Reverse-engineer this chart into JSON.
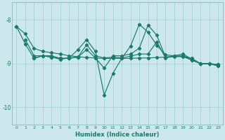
{
  "xlabel": "Humidex (Indice chaleur)",
  "background_color": "#cce8ec",
  "grid_color": "#aad4d8",
  "line_color": "#1a7a6e",
  "xlim": [
    -0.5,
    23.5
  ],
  "ylim": [
    -10.4,
    -7.6
  ],
  "yticks": [
    -10,
    -9,
    -8
  ],
  "xticks": [
    0,
    1,
    2,
    3,
    4,
    5,
    6,
    7,
    8,
    9,
    10,
    11,
    12,
    13,
    14,
    15,
    16,
    17,
    18,
    19,
    20,
    21,
    22,
    23
  ],
  "lines": [
    {
      "x": [
        0,
        1,
        2,
        3,
        4,
        5,
        6,
        7,
        8,
        9,
        10,
        11,
        12,
        13,
        14,
        15,
        16,
        17,
        18,
        19,
        20,
        21,
        22,
        23
      ],
      "y": [
        -8.15,
        -8.32,
        -8.65,
        -8.72,
        -8.75,
        -8.78,
        -8.82,
        -8.84,
        -8.86,
        -8.87,
        -8.88,
        -8.88,
        -8.88,
        -8.88,
        -8.87,
        -8.87,
        -8.86,
        -8.85,
        -8.84,
        -8.84,
        -8.92,
        -9.0,
        -9.0,
        -9.02
      ]
    },
    {
      "x": [
        0,
        1,
        2,
        3,
        4,
        5,
        6,
        7,
        8,
        9,
        10,
        11,
        12,
        13,
        14,
        15,
        16,
        17,
        18,
        19,
        20,
        21,
        22,
        23
      ],
      "y": [
        -8.15,
        -8.55,
        -8.88,
        -8.82,
        -8.85,
        -8.9,
        -8.87,
        -8.68,
        -8.45,
        -8.72,
        -9.72,
        -9.22,
        -8.88,
        -8.6,
        -8.1,
        -8.28,
        -8.58,
        -8.8,
        -8.82,
        -8.78,
        -8.9,
        -9.0,
        -9.0,
        -9.05
      ]
    },
    {
      "x": [
        1,
        2,
        3,
        4,
        5,
        6,
        7,
        8,
        9,
        10,
        11,
        12,
        13,
        14,
        15,
        16,
        17,
        18,
        19,
        20,
        21,
        22,
        23
      ],
      "y": [
        -8.45,
        -8.82,
        -8.82,
        -8.82,
        -8.88,
        -8.87,
        -8.85,
        -8.68,
        -8.87,
        -9.1,
        -8.82,
        -8.82,
        -8.78,
        -8.65,
        -8.12,
        -8.35,
        -8.85,
        -8.83,
        -8.82,
        -8.92,
        -9.0,
        -9.0,
        -9.02
      ]
    },
    {
      "x": [
        2,
        3,
        4,
        5,
        6,
        7,
        8,
        9,
        10,
        11,
        12,
        13,
        14,
        15,
        16,
        17,
        18,
        19,
        20,
        21,
        22,
        23
      ],
      "y": [
        -8.87,
        -8.82,
        -8.85,
        -8.88,
        -8.88,
        -8.85,
        -8.57,
        -8.82,
        -8.87,
        -8.85,
        -8.87,
        -8.83,
        -8.78,
        -8.78,
        -8.5,
        -8.87,
        -8.83,
        -8.83,
        -8.88,
        -9.0,
        -9.0,
        -9.05
      ]
    }
  ]
}
